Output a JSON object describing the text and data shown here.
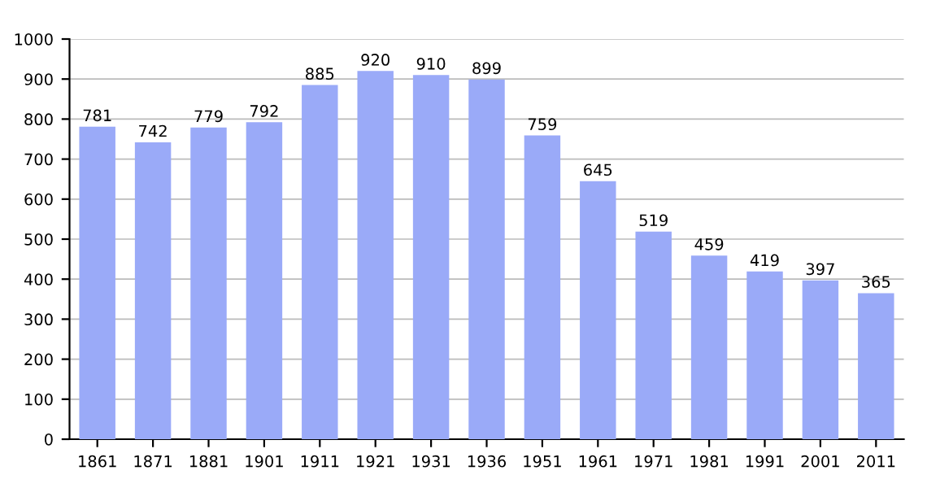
{
  "chart_data": {
    "type": "bar",
    "categories": [
      "1861",
      "1871",
      "1881",
      "1901",
      "1911",
      "1921",
      "1931",
      "1936",
      "1951",
      "1961",
      "1971",
      "1981",
      "1991",
      "2001",
      "2011"
    ],
    "values": [
      781,
      742,
      779,
      792,
      885,
      920,
      910,
      899,
      759,
      645,
      519,
      459,
      419,
      397,
      365
    ],
    "color": "#9aaaf8",
    "ylim": [
      0,
      1000
    ],
    "yticks": [
      0,
      100,
      200,
      300,
      400,
      500,
      600,
      700,
      800,
      900,
      1000
    ],
    "grid": "y",
    "data_labels": true
  }
}
